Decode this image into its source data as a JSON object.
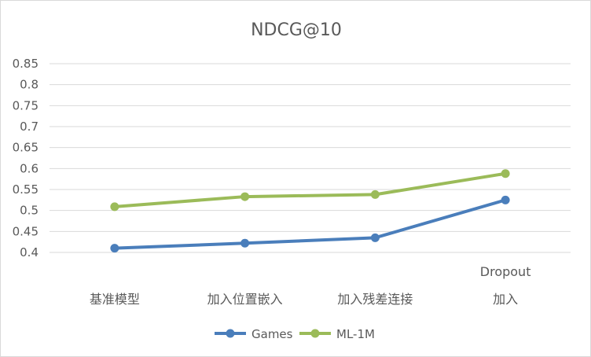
{
  "chart_data": {
    "type": "line",
    "title": "NDCG@10",
    "xlabel": "",
    "ylabel": "",
    "ylim": [
      0.4,
      0.85
    ],
    "yticks": [
      "0.4",
      "0.45",
      "0.5",
      "0.55",
      "0.6",
      "0.65",
      "0.7",
      "0.75",
      "0.8",
      "0.85"
    ],
    "categories": [
      "基准模型",
      "加入位置嵌入",
      "加入残差连接",
      "Dropout 加入"
    ],
    "category_lines": [
      [
        "基准模型"
      ],
      [
        "加入位置嵌入"
      ],
      [
        "加入残差连接"
      ],
      [
        "Dropout",
        "加入"
      ]
    ],
    "series": [
      {
        "name": "Games",
        "values": [
          0.41,
          0.422,
          0.435,
          0.525
        ],
        "color": "#4a7ebb"
      },
      {
        "name": "ML-1M",
        "values": [
          0.509,
          0.533,
          0.538,
          0.588
        ],
        "color": "#9bbb59"
      }
    ],
    "grid": true,
    "legend_position": "bottom"
  }
}
